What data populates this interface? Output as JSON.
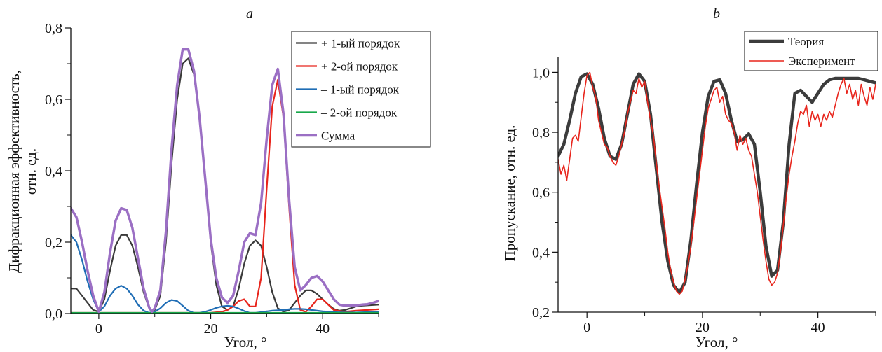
{
  "chart_data": [
    {
      "type": "line",
      "panel_label": "a",
      "xlabel": "Угол, °",
      "ylabel": [
        "Дифракционная эффективность,",
        "отн. ед."
      ],
      "xlim": [
        -5,
        50
      ],
      "ylim": [
        0,
        0.8
      ],
      "xticks": [
        0,
        20,
        40
      ],
      "yticks": [
        0.0,
        0.2,
        0.4,
        0.6,
        0.8
      ],
      "xtick_labels": [
        "0",
        "20",
        "40"
      ],
      "ytick_labels": [
        "0,0",
        "0,2",
        "0,4",
        "0,6",
        "0,8"
      ],
      "legend_position": "top-right",
      "series": [
        {
          "name": "+ 1-ый порядок",
          "color": "#3a3a3a",
          "x": [
            -5,
            -4,
            -3,
            -2,
            -1,
            0,
            1,
            2,
            3,
            4,
            5,
            6,
            7,
            8,
            9,
            9.5,
            10,
            11,
            12,
            13,
            14,
            15,
            16,
            17,
            18,
            19,
            20,
            21,
            22,
            23,
            24,
            25,
            26,
            27,
            28,
            29,
            30,
            31,
            32,
            33,
            34,
            35,
            36,
            37,
            38,
            39,
            40,
            41,
            42,
            43,
            44,
            45,
            46,
            47,
            48,
            49,
            50
          ],
          "y": [
            0.07,
            0.07,
            0.05,
            0.03,
            0.01,
            0.005,
            0.04,
            0.12,
            0.19,
            0.22,
            0.22,
            0.19,
            0.13,
            0.06,
            0.015,
            0.005,
            0.01,
            0.05,
            0.2,
            0.42,
            0.6,
            0.7,
            0.715,
            0.67,
            0.55,
            0.38,
            0.2,
            0.08,
            0.02,
            0.01,
            0.02,
            0.07,
            0.14,
            0.19,
            0.205,
            0.19,
            0.13,
            0.06,
            0.015,
            0.005,
            0.01,
            0.03,
            0.05,
            0.065,
            0.065,
            0.055,
            0.04,
            0.025,
            0.013,
            0.008,
            0.01,
            0.015,
            0.02,
            0.022,
            0.023,
            0.024,
            0.025
          ]
        },
        {
          "name": "+ 2-ой порядок",
          "color": "#e8251c",
          "x": [
            -5,
            0,
            5,
            10,
            15,
            20,
            22,
            23,
            24,
            25,
            26,
            27,
            28,
            29,
            30,
            31,
            32,
            33,
            34,
            35,
            36,
            37,
            38,
            39,
            40,
            41,
            42,
            44,
            46,
            48,
            50
          ],
          "y": [
            0.002,
            0.002,
            0.002,
            0.002,
            0.002,
            0.002,
            0.005,
            0.01,
            0.02,
            0.035,
            0.04,
            0.02,
            0.02,
            0.1,
            0.35,
            0.58,
            0.655,
            0.55,
            0.3,
            0.08,
            0.01,
            0.005,
            0.02,
            0.04,
            0.04,
            0.025,
            0.01,
            0.005,
            0.008,
            0.01,
            0.012
          ]
        },
        {
          "name": "– 1-ый порядок",
          "color": "#1f6db5",
          "x": [
            -5,
            -4,
            -3,
            -2,
            -1,
            0,
            1,
            2,
            3,
            4,
            5,
            6,
            7,
            8,
            9,
            10,
            11,
            12,
            13,
            14,
            15,
            16,
            17,
            18,
            19,
            20,
            21,
            22,
            23,
            24,
            25,
            26,
            27,
            28,
            29,
            30,
            31,
            32,
            33,
            34,
            35,
            36,
            37,
            38,
            39,
            40,
            42,
            44,
            46,
            48,
            50
          ],
          "y": [
            0.22,
            0.2,
            0.15,
            0.09,
            0.04,
            0.005,
            0.02,
            0.05,
            0.07,
            0.078,
            0.07,
            0.05,
            0.025,
            0.008,
            0.002,
            0.005,
            0.015,
            0.03,
            0.038,
            0.035,
            0.022,
            0.008,
            0.002,
            0.002,
            0.005,
            0.01,
            0.016,
            0.02,
            0.022,
            0.02,
            0.014,
            0.007,
            0.002,
            0.002,
            0.004,
            0.006,
            0.008,
            0.009,
            0.01,
            0.012,
            0.013,
            0.013,
            0.012,
            0.01,
            0.008,
            0.006,
            0.004,
            0.003,
            0.003,
            0.004,
            0.005
          ]
        },
        {
          "name": "– 2-ой порядок",
          "color": "#18a84a",
          "x": [
            -5,
            0,
            10,
            20,
            30,
            40,
            50
          ],
          "y": [
            0.002,
            0.002,
            0.002,
            0.002,
            0.002,
            0.002,
            0.002
          ]
        },
        {
          "name": "Сумма",
          "color": "#9b6fc4",
          "x": [
            -5,
            -4,
            -3,
            -2,
            -1,
            0,
            1,
            2,
            3,
            4,
            5,
            6,
            7,
            8,
            9,
            9.5,
            10,
            11,
            12,
            13,
            14,
            15,
            16,
            17,
            18,
            19,
            20,
            21,
            22,
            23,
            24,
            25,
            26,
            27,
            28,
            29,
            30,
            31,
            32,
            33,
            34,
            35,
            36,
            37,
            38,
            39,
            40,
            41,
            42,
            43,
            44,
            45,
            46,
            47,
            48,
            49,
            50
          ],
          "y": [
            0.295,
            0.27,
            0.2,
            0.12,
            0.05,
            0.005,
            0.06,
            0.17,
            0.26,
            0.295,
            0.29,
            0.24,
            0.155,
            0.07,
            0.017,
            0.005,
            0.015,
            0.065,
            0.23,
            0.46,
            0.64,
            0.74,
            0.74,
            0.68,
            0.55,
            0.38,
            0.21,
            0.1,
            0.045,
            0.03,
            0.05,
            0.12,
            0.2,
            0.225,
            0.22,
            0.31,
            0.49,
            0.64,
            0.685,
            0.56,
            0.32,
            0.13,
            0.065,
            0.08,
            0.1,
            0.105,
            0.09,
            0.065,
            0.04,
            0.025,
            0.022,
            0.022,
            0.023,
            0.025,
            0.026,
            0.03,
            0.035
          ]
        }
      ]
    },
    {
      "type": "line",
      "panel_label": "b",
      "xlabel": "Угол, °",
      "ylabel": [
        "Пропускание, отн. ед."
      ],
      "xlim": [
        -5,
        50
      ],
      "ylim": [
        0.2,
        1.05
      ],
      "xticks": [
        0,
        20,
        40
      ],
      "yticks": [
        0.2,
        0.4,
        0.6,
        0.8,
        1.0
      ],
      "xtick_labels": [
        "0",
        "20",
        "40"
      ],
      "ytick_labels": [
        "0,2",
        "0,4",
        "0,6",
        "0,8",
        "1,0"
      ],
      "legend_position": "top-right",
      "series": [
        {
          "name": "Теория",
          "color": "#3c3c3c",
          "x": [
            -5,
            -4,
            -3,
            -2,
            -1,
            0,
            1,
            2,
            3,
            4,
            5,
            6,
            7,
            8,
            9,
            10,
            11,
            12,
            13,
            14,
            15,
            16,
            17,
            18,
            19,
            20,
            21,
            22,
            23,
            24,
            25,
            26,
            27,
            28,
            29,
            30,
            31,
            32,
            33,
            34,
            35,
            36,
            37,
            38,
            39,
            40,
            41,
            42,
            43,
            44,
            45,
            46,
            47,
            48,
            49,
            50
          ],
          "y": [
            0.72,
            0.76,
            0.84,
            0.93,
            0.985,
            0.995,
            0.96,
            0.88,
            0.78,
            0.72,
            0.71,
            0.76,
            0.86,
            0.96,
            0.995,
            0.97,
            0.86,
            0.68,
            0.5,
            0.37,
            0.29,
            0.265,
            0.3,
            0.44,
            0.63,
            0.8,
            0.92,
            0.97,
            0.975,
            0.93,
            0.84,
            0.77,
            0.775,
            0.795,
            0.76,
            0.6,
            0.42,
            0.32,
            0.34,
            0.5,
            0.76,
            0.93,
            0.94,
            0.92,
            0.9,
            0.93,
            0.96,
            0.975,
            0.98,
            0.98,
            0.98,
            0.98,
            0.98,
            0.975,
            0.97,
            0.965
          ]
        },
        {
          "name": "Эксперимент",
          "color": "#e8251c",
          "x": [
            -5,
            -4.5,
            -4,
            -3.5,
            -3,
            -2.5,
            -2,
            -1.5,
            -1,
            -0.5,
            0,
            0.5,
            1,
            1.5,
            2,
            2.5,
            3,
            3.5,
            4,
            4.5,
            5,
            5.5,
            6,
            6.5,
            7,
            7.5,
            8,
            8.5,
            9,
            9.5,
            10,
            10.5,
            11,
            11.5,
            12,
            12.5,
            13,
            13.5,
            14,
            14.5,
            15,
            15.5,
            16,
            16.5,
            17,
            17.5,
            18,
            18.5,
            19,
            19.5,
            20,
            20.5,
            21,
            21.5,
            22,
            22.5,
            23,
            23.5,
            24,
            24.5,
            25,
            25.5,
            26,
            26.5,
            27,
            27.5,
            28,
            28.5,
            29,
            29.5,
            30,
            30.5,
            31,
            31.5,
            32,
            32.5,
            33,
            33.5,
            34,
            34.5,
            35,
            35.5,
            36,
            36.5,
            37,
            37.5,
            38,
            38.5,
            39,
            39.5,
            40,
            40.5,
            41,
            41.5,
            42,
            42.5,
            43,
            43.5,
            44,
            44.5,
            45,
            45.5,
            46,
            46.5,
            47,
            47.5,
            48,
            48.5,
            49,
            49.5,
            50
          ],
          "y": [
            0.71,
            0.66,
            0.69,
            0.64,
            0.71,
            0.78,
            0.79,
            0.77,
            0.85,
            0.93,
            0.99,
            1.0,
            0.95,
            0.92,
            0.84,
            0.8,
            0.76,
            0.75,
            0.72,
            0.7,
            0.69,
            0.72,
            0.76,
            0.8,
            0.86,
            0.9,
            0.94,
            0.93,
            0.98,
            0.95,
            0.97,
            0.9,
            0.84,
            0.79,
            0.7,
            0.62,
            0.55,
            0.48,
            0.4,
            0.34,
            0.3,
            0.27,
            0.26,
            0.27,
            0.31,
            0.36,
            0.42,
            0.5,
            0.58,
            0.66,
            0.74,
            0.82,
            0.88,
            0.91,
            0.94,
            0.95,
            0.9,
            0.92,
            0.86,
            0.84,
            0.83,
            0.8,
            0.74,
            0.79,
            0.76,
            0.78,
            0.74,
            0.72,
            0.66,
            0.6,
            0.52,
            0.44,
            0.37,
            0.31,
            0.29,
            0.3,
            0.33,
            0.4,
            0.49,
            0.58,
            0.66,
            0.72,
            0.77,
            0.83,
            0.87,
            0.86,
            0.89,
            0.82,
            0.87,
            0.84,
            0.86,
            0.82,
            0.86,
            0.84,
            0.87,
            0.85,
            0.89,
            0.93,
            0.96,
            0.98,
            0.93,
            0.96,
            0.91,
            0.94,
            0.89,
            0.96,
            0.92,
            0.89,
            0.95,
            0.91,
            0.96
          ]
        }
      ]
    }
  ]
}
